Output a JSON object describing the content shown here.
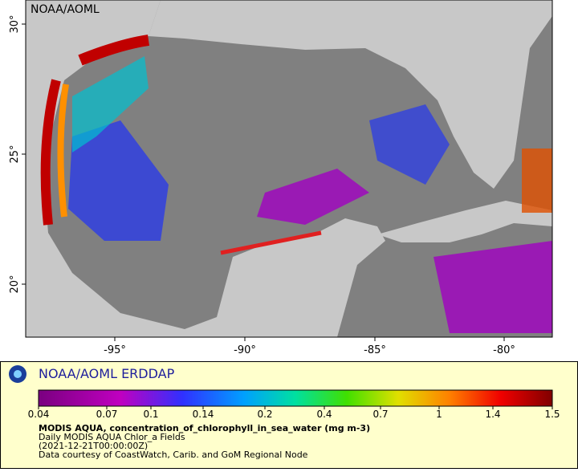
{
  "map": {
    "corner_label": "NOAA/AOML",
    "lat_labels": [
      "30°",
      "25°",
      "20°"
    ],
    "lon_labels": [
      "-95°",
      "-90°",
      "-85°",
      "-80°"
    ]
  },
  "legend": {
    "brand": "NOAA/AOML ERDDAP",
    "ticks": [
      "0.04",
      "0.07",
      "0.1",
      "0.14",
      "0.2",
      "0.4",
      "0.7",
      "1",
      "1.4",
      "1.5"
    ],
    "title": "MODIS AQUA, concentration_of_chlorophyll_in_sea_water (mg m-3)",
    "lines": [
      "Daily MODIS AQUA Chlor_a Fields",
      "(2021-12-21T00:00:00Z)",
      "Data courtesy of CoastWatch, Carib. and GoM Regional Node"
    ]
  }
}
